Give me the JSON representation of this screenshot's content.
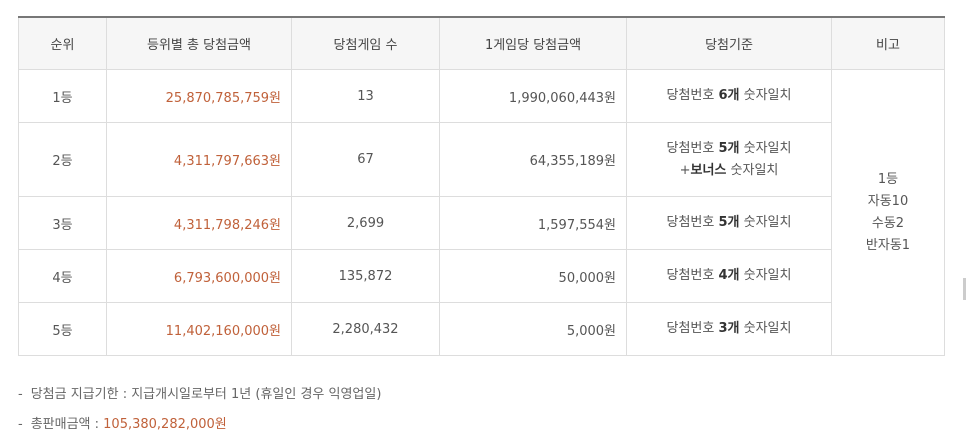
{
  "table": {
    "headers": [
      "순위",
      "등위별 총 당첨금액",
      "당첨게임 수",
      "1게임당 당첨금액",
      "당첨기준",
      "비고"
    ],
    "rows": [
      {
        "rank": "1등",
        "total": "25,870,785,759원",
        "games": "13",
        "per_game": "1,990,060,443원",
        "criteria_pre": "당첨번호 ",
        "criteria_bold": "6개",
        "criteria_post": " 숫자일치"
      },
      {
        "rank": "2등",
        "total": "4,311,797,663원",
        "games": "67",
        "per_game": "64,355,189원",
        "criteria_pre": "당첨번호 ",
        "criteria_bold": "5개",
        "criteria_post": " 숫자일치",
        "criteria2_pre": "+",
        "criteria2_bold": "보너스",
        "criteria2_post": " 숫자일치"
      },
      {
        "rank": "3등",
        "total": "4,311,798,246원",
        "games": "2,699",
        "per_game": "1,597,554원",
        "criteria_pre": "당첨번호 ",
        "criteria_bold": "5개",
        "criteria_post": " 숫자일치"
      },
      {
        "rank": "4등",
        "total": "6,793,600,000원",
        "games": "135,872",
        "per_game": "50,000원",
        "criteria_pre": "당첨번호 ",
        "criteria_bold": "4개",
        "criteria_post": " 숫자일치"
      },
      {
        "rank": "5등",
        "total": "11,402,160,000원",
        "games": "2,280,432",
        "per_game": "5,000원",
        "criteria_pre": "당첨번호 ",
        "criteria_bold": "3개",
        "criteria_post": " 숫자일치"
      }
    ],
    "remark_lines": [
      "1등",
      "자동10",
      "수동2",
      "반자동1"
    ]
  },
  "notes": {
    "payout_label": "당첨금 지급기한 : ",
    "payout_value": "지급개시일로부터 1년 (휴일인 경우 익영업일)",
    "sales_label": "총판매금액 : ",
    "sales_value": "105,380,282,000원",
    "dash": "-"
  }
}
